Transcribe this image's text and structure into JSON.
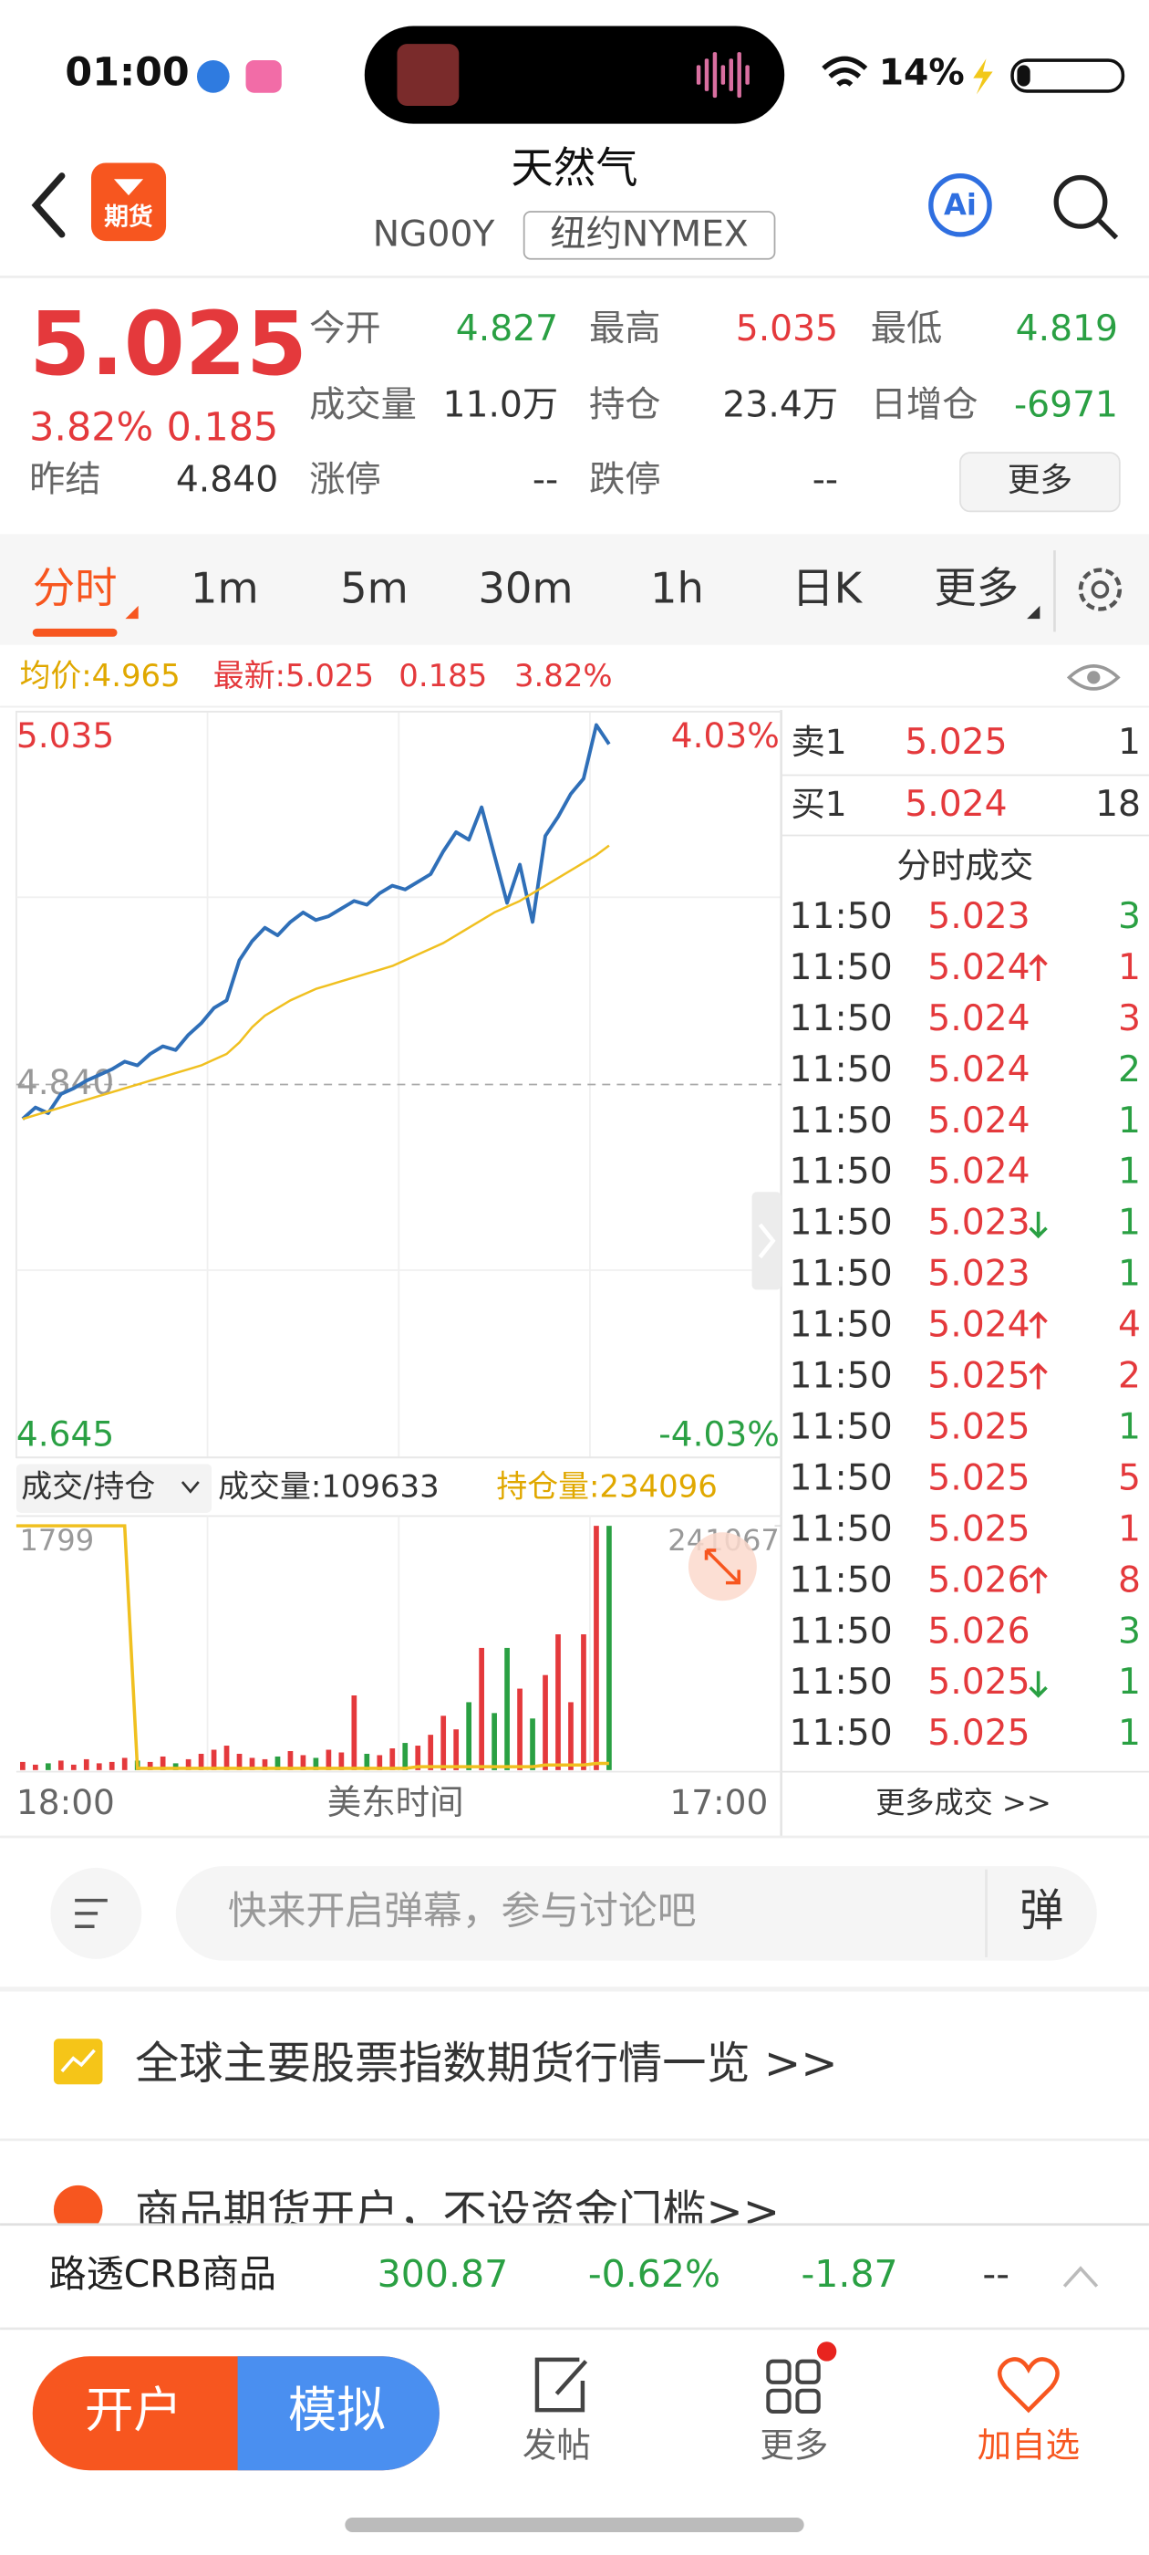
{
  "status_bar": {
    "time": "01:00",
    "battery": "14%"
  },
  "header": {
    "badge": "期货",
    "title": "天然气",
    "code": "NG00Y",
    "exchange": "纽约NYMEX",
    "ai": "Ai"
  },
  "quote": {
    "price": "5.025",
    "change_pct": "3.82%",
    "change": "0.185",
    "color": "#e4393c",
    "fields": [
      {
        "label": "今开",
        "value": "4.827",
        "color": "#2aa043"
      },
      {
        "label": "最高",
        "value": "5.035",
        "color": "#e4393c"
      },
      {
        "label": "最低",
        "value": "4.819",
        "color": "#2aa043"
      },
      {
        "label": "成交量",
        "value": "11.0万",
        "color": "#333333"
      },
      {
        "label": "持仓",
        "value": "23.4万",
        "color": "#333333"
      },
      {
        "label": "日增仓",
        "value": "-6971",
        "color": "#2aa043"
      },
      {
        "label": "涨停",
        "value": "--",
        "color": "#333333"
      },
      {
        "label": "跌停",
        "value": "--",
        "color": "#333333"
      }
    ],
    "prev_label": "昨结",
    "prev_value": "4.840",
    "more": "更多"
  },
  "tabs": {
    "items": [
      "分时",
      "1m",
      "5m",
      "30m",
      "1h",
      "日K",
      "更多"
    ],
    "active": 0
  },
  "info": {
    "avg": "均价:4.965",
    "latest": "最新:5.025",
    "change": "0.185",
    "pct": "3.82%"
  },
  "chart_data": [
    {
      "type": "line",
      "ylim": [
        4.645,
        5.035
      ],
      "yticks": [
        4.645,
        {
          "value": 4.84,
          "label": "4.840"
        },
        5.035
      ],
      "ytick_colors": [
        "#2aa043",
        "#999999",
        "#e4393c"
      ],
      "y2lim": [
        -4.03,
        4.03
      ],
      "y2ticks": [
        {
          "value": -4.03,
          "label": "-4.03%"
        },
        {
          "value": 4.03,
          "label": "4.03%"
        }
      ],
      "y2tick_colors": [
        "#2aa043",
        "#e4393c"
      ],
      "series": [
        {
          "color": "#2f6fb8",
          "values": [
            4.822,
            4.828,
            4.825,
            4.835,
            4.838,
            4.842,
            4.845,
            4.848,
            4.852,
            4.85,
            4.856,
            4.86,
            4.858,
            4.866,
            4.872,
            4.88,
            4.884,
            4.905,
            4.915,
            4.922,
            4.918,
            4.925,
            4.93,
            4.926,
            4.928,
            4.932,
            4.936,
            4.934,
            4.94,
            4.944,
            4.942,
            4.946,
            4.95,
            4.962,
            4.972,
            4.968,
            4.985,
            4.96,
            4.935,
            4.955,
            4.925,
            4.97,
            4.98,
            4.992,
            5.0,
            5.028,
            5.018,
            null,
            null,
            null,
            null,
            null,
            null,
            null,
            null,
            null,
            null,
            null,
            null,
            null
          ]
        },
        {
          "color": "#f0c020",
          "values": [
            4.822,
            4.824,
            4.826,
            4.828,
            4.83,
            4.832,
            4.834,
            4.836,
            4.838,
            4.84,
            4.842,
            4.844,
            4.846,
            4.848,
            4.85,
            4.853,
            4.856,
            4.862,
            4.87,
            4.876,
            4.88,
            4.884,
            4.887,
            4.89,
            4.892,
            4.894,
            4.896,
            4.898,
            4.9,
            4.902,
            4.905,
            4.908,
            4.911,
            4.914,
            4.918,
            4.922,
            4.926,
            4.93,
            4.933,
            4.936,
            4.94,
            4.944,
            4.948,
            4.952,
            4.956,
            4.96,
            4.965,
            null,
            null,
            null,
            null,
            null,
            null,
            null,
            null,
            null,
            null,
            null,
            null,
            null
          ]
        }
      ]
    },
    {
      "type": "bar",
      "title": "成交/持仓",
      "volume_label": "成交量:109633",
      "oi_label": "持仓量:234096",
      "ylim": [
        0,
        1799
      ],
      "yticks": [
        1799
      ],
      "y2lim": [
        233900,
        241067
      ],
      "y2ticks": [
        241067
      ],
      "up_color": "#e4393c",
      "down_color": "#2aa043",
      "values": [
        60,
        40,
        50,
        70,
        40,
        80,
        50,
        60,
        90,
        70,
        60,
        100,
        50,
        80,
        120,
        150,
        180,
        120,
        90,
        80,
        100,
        140,
        110,
        90,
        150,
        130,
        550,
        120,
        110,
        160,
        200,
        180,
        260,
        400,
        300,
        500,
        900,
        420,
        900,
        600,
        380,
        700,
        1000,
        500,
        1000,
        1799,
        1799
      ],
      "oi_color": "#f0c020",
      "oi": [
        241067,
        241067,
        241067,
        241067,
        241067,
        241067,
        241067,
        241067,
        241067,
        233950,
        233950,
        233950,
        233950,
        233950,
        233950,
        233950,
        233950,
        233950,
        233950,
        233950,
        233950,
        233950,
        233950,
        233950,
        233950,
        233950,
        233950,
        233950,
        233950,
        233950,
        233950,
        234000,
        234000,
        234000,
        234000,
        234000,
        234000,
        234000,
        234000,
        234000,
        234000,
        234050,
        234050,
        234050,
        234050,
        234096,
        234096
      ],
      "x_labels": [
        "18:00",
        "17:00"
      ],
      "x_title": "美东时间"
    }
  ],
  "order_book": {
    "asks": [
      {
        "label": "卖1",
        "price": "5.025",
        "qty": "1"
      }
    ],
    "bids": [
      {
        "label": "买1",
        "price": "5.024",
        "qty": "18"
      }
    ],
    "trades_title": "分时成交",
    "trades": [
      {
        "time": "11:50",
        "price": "5.023",
        "qty": "3",
        "qty_color": "#2aa043"
      },
      {
        "time": "11:50",
        "price": "5.024",
        "arrow": "up",
        "qty": "1",
        "qty_color": "#e4393c"
      },
      {
        "time": "11:50",
        "price": "5.024",
        "qty": "3",
        "qty_color": "#e4393c"
      },
      {
        "time": "11:50",
        "price": "5.024",
        "qty": "2",
        "qty_color": "#2aa043"
      },
      {
        "time": "11:50",
        "price": "5.024",
        "qty": "1",
        "qty_color": "#2aa043"
      },
      {
        "time": "11:50",
        "price": "5.024",
        "qty": "1",
        "qty_color": "#2aa043"
      },
      {
        "time": "11:50",
        "price": "5.023",
        "arrow": "down",
        "qty": "1",
        "qty_color": "#2aa043"
      },
      {
        "time": "11:50",
        "price": "5.023",
        "qty": "1",
        "qty_color": "#2aa043"
      },
      {
        "time": "11:50",
        "price": "5.024",
        "arrow": "up",
        "qty": "4",
        "qty_color": "#e4393c"
      },
      {
        "time": "11:50",
        "price": "5.025",
        "arrow": "up",
        "qty": "2",
        "qty_color": "#e4393c"
      },
      {
        "time": "11:50",
        "price": "5.025",
        "qty": "1",
        "qty_color": "#2aa043"
      },
      {
        "time": "11:50",
        "price": "5.025",
        "qty": "5",
        "qty_color": "#e4393c"
      },
      {
        "time": "11:50",
        "price": "5.025",
        "qty": "1",
        "qty_color": "#e4393c"
      },
      {
        "time": "11:50",
        "price": "5.026",
        "arrow": "up",
        "qty": "8",
        "qty_color": "#e4393c"
      },
      {
        "time": "11:50",
        "price": "5.026",
        "qty": "3",
        "qty_color": "#2aa043"
      },
      {
        "time": "11:50",
        "price": "5.025",
        "arrow": "down",
        "qty": "1",
        "qty_color": "#2aa043"
      },
      {
        "time": "11:50",
        "price": "5.025",
        "qty": "1",
        "qty_color": "#2aa043"
      }
    ],
    "more": "更多成交 >>"
  },
  "comment": {
    "placeholder": "快来开启弹幕，参与讨论吧",
    "danmu": "弹"
  },
  "banners": [
    "全球主要股票指数期货行情一览 >>",
    "商品期货开户，不设资金门槛>>"
  ],
  "ticker": {
    "name": "路透CRB商品",
    "price": "300.87",
    "pct": "-0.62%",
    "change": "-1.87",
    "extra": "--",
    "color": "#2aa043"
  },
  "nav": {
    "open": "开户",
    "demo": "模拟",
    "items": [
      "发帖",
      "更多",
      "加自选"
    ]
  }
}
